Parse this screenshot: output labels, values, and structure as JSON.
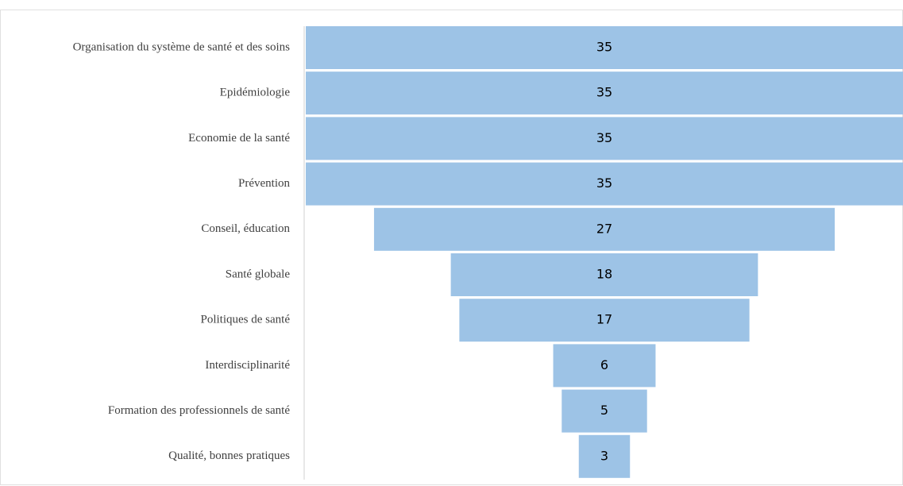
{
  "chart_data": {
    "type": "funnel",
    "categories": [
      "Organisation du système de santé et des soins",
      "Epidémiologie",
      "Economie de la santé",
      "Prévention",
      "Conseil, éducation",
      "Santé globale",
      "Politiques de santé",
      "Interdisciplinarité",
      "Formation des professionnels de santé",
      "Qualité, bonnes pratiques"
    ],
    "values": [
      35,
      35,
      35,
      35,
      27,
      18,
      17,
      6,
      5,
      3
    ],
    "color": "#9dc3e6"
  }
}
